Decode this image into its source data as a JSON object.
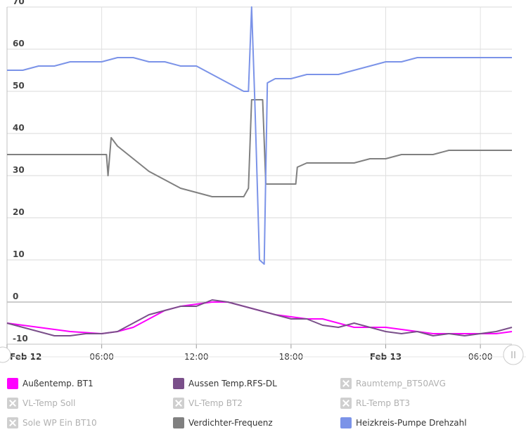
{
  "chart_data": {
    "type": "line",
    "x_tick_labels": [
      "Feb 12",
      "06:00",
      "12:00",
      "18:00",
      "Feb 13",
      "06:00"
    ],
    "y_tick_labels": [
      "70",
      "60",
      "50",
      "40",
      "30",
      "20",
      "10",
      "0",
      "-10"
    ],
    "ylim": [
      -10,
      70
    ],
    "grid": true,
    "legend_position": "bottom",
    "series": [
      {
        "name": "Außentemp. BT1",
        "color": "#ff00ff",
        "visible": true,
        "x": [
          0,
          2,
          4,
          6,
          7,
          8,
          9,
          10,
          11,
          12,
          13,
          14,
          15,
          16,
          17,
          18,
          19,
          20,
          21,
          22,
          23,
          24,
          25,
          26,
          27,
          28,
          29,
          30,
          31,
          32
        ],
        "y": [
          -5,
          -6,
          -7,
          -7.5,
          -7,
          -6,
          -4,
          -2,
          -1,
          -0.5,
          0,
          0,
          -1,
          -2,
          -3,
          -3.5,
          -4,
          -4,
          -5,
          -6,
          -6,
          -6,
          -6.5,
          -7,
          -7.5,
          -7.5,
          -7.5,
          -7.5,
          -7.5,
          -7
        ]
      },
      {
        "name": "Aussen Temp.RFS-DL",
        "color": "#7a4f8a",
        "visible": true,
        "x": [
          0,
          1,
          2,
          3,
          4,
          5,
          6,
          7,
          8,
          9,
          10,
          11,
          12,
          13,
          14,
          15,
          16,
          17,
          18,
          19,
          20,
          21,
          22,
          23,
          24,
          25,
          26,
          27,
          28,
          29,
          30,
          31,
          32
        ],
        "y": [
          -5,
          -6,
          -7,
          -8,
          -8,
          -7.5,
          -7.5,
          -7,
          -5,
          -3,
          -2,
          -1,
          -1,
          0.5,
          0,
          -1,
          -2,
          -3,
          -4,
          -4,
          -5.5,
          -6,
          -5,
          -6,
          -7,
          -7.5,
          -7,
          -8,
          -7.5,
          -8,
          -7.5,
          -7,
          -6
        ]
      },
      {
        "name": "Raumtemp_BT50AVG",
        "color": "#cccccc",
        "visible": false,
        "x": [],
        "y": []
      },
      {
        "name": "VL-Temp Soll",
        "color": "#cccccc",
        "visible": false,
        "x": [],
        "y": []
      },
      {
        "name": "VL-Temp BT2",
        "color": "#cccccc",
        "visible": false,
        "x": [],
        "y": []
      },
      {
        "name": "RL-Temp BT3",
        "color": "#cccccc",
        "visible": false,
        "x": [],
        "y": []
      },
      {
        "name": "Sole WP Ein BT10",
        "color": "#cccccc",
        "visible": false,
        "x": [],
        "y": []
      },
      {
        "name": "Verdichter-Frequenz",
        "color": "#808080",
        "visible": true,
        "x": [
          0,
          6.3,
          6.4,
          6.6,
          7,
          8,
          9,
          10,
          11,
          12,
          13,
          14,
          15,
          15.3,
          15.5,
          15.7,
          16.2,
          16.4,
          17,
          18,
          18.3,
          18.4,
          19,
          20,
          21,
          22,
          23,
          24,
          25,
          26,
          27,
          28,
          29,
          30,
          31,
          32
        ],
        "y": [
          35,
          35,
          30,
          39,
          37,
          34,
          31,
          29,
          27,
          26,
          25,
          25,
          25,
          27,
          48,
          48,
          48,
          28,
          28,
          28,
          28,
          32,
          33,
          33,
          33,
          33,
          34,
          34,
          35,
          35,
          35,
          36,
          36,
          36,
          36,
          36
        ]
      },
      {
        "name": "Heizkreis-Pumpe Drehzahl",
        "color": "#7b93e8",
        "visible": true,
        "x": [
          0,
          1,
          2,
          3,
          4,
          5,
          6,
          7,
          8,
          9,
          10,
          11,
          12,
          13,
          13.5,
          14,
          14.5,
          15,
          15.3,
          15.5,
          15.7,
          16,
          16.3,
          16.5,
          17,
          18,
          19,
          20,
          21,
          22,
          23,
          24,
          25,
          26,
          27,
          28,
          29,
          30,
          31,
          32
        ],
        "y": [
          55,
          55,
          56,
          56,
          57,
          57,
          57,
          58,
          58,
          57,
          57,
          56,
          56,
          54,
          53,
          52,
          51,
          50,
          50,
          70,
          48,
          10,
          9,
          52,
          53,
          53,
          54,
          54,
          54,
          55,
          56,
          57,
          57,
          58,
          58,
          58,
          58,
          58,
          58,
          58
        ]
      }
    ]
  }
}
